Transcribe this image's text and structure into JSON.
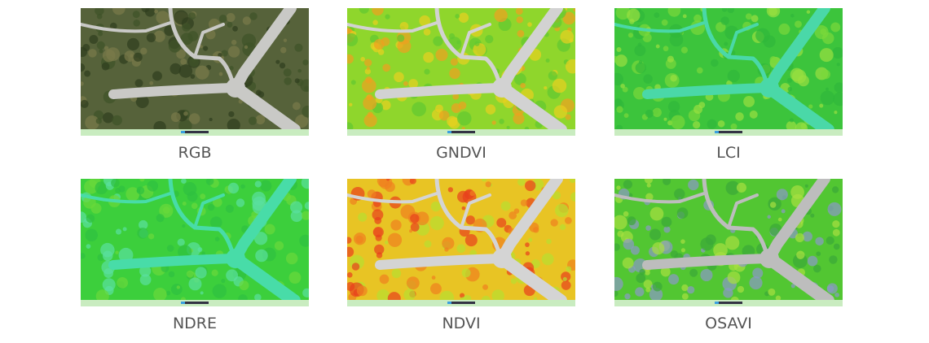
{
  "panels": [
    {
      "label": "RGB"
    },
    {
      "label": "GNDVI"
    },
    {
      "label": "LCI"
    },
    {
      "label": "NDRE"
    },
    {
      "label": "NDVI"
    },
    {
      "label": "OSAVI"
    }
  ]
}
